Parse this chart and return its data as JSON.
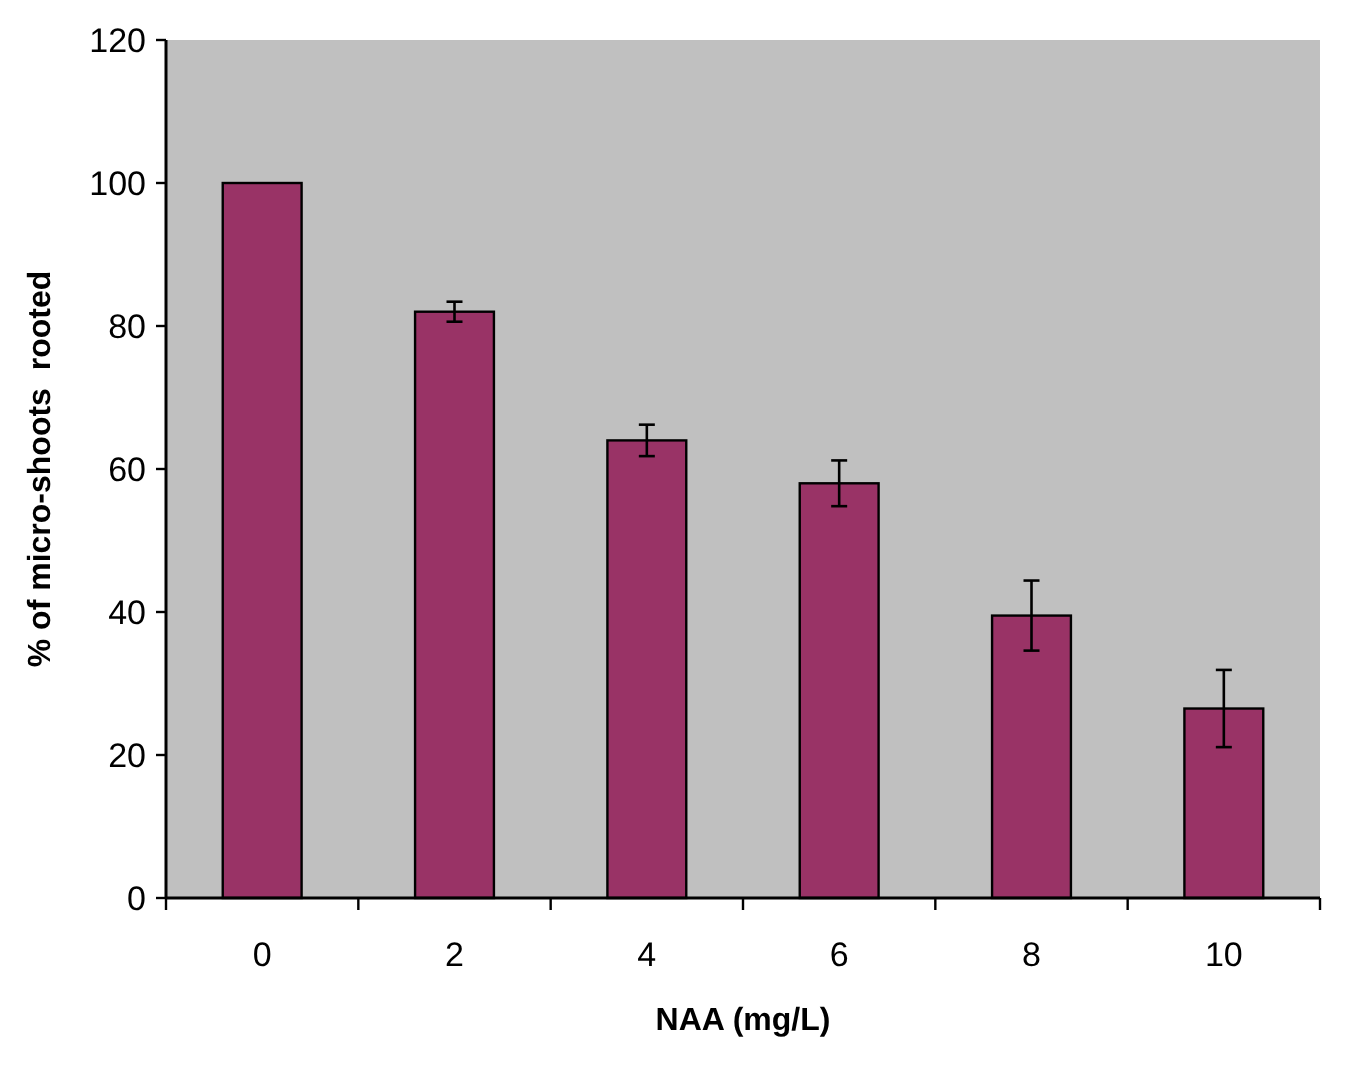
{
  "chart_data": {
    "type": "bar",
    "xlabel": "NAA (mg/L)",
    "ylabel": "% of micro-shoots  rooted",
    "categories": [
      "0",
      "2",
      "4",
      "6",
      "8",
      "10"
    ],
    "values": [
      100,
      82,
      64,
      58,
      39.5,
      26.5
    ],
    "errors": [
      null,
      1.4,
      2.2,
      3.2,
      4.9,
      5.4
    ],
    "color": "#993366",
    "ylim": [
      0,
      120
    ],
    "yticks": [
      0,
      20,
      40,
      60,
      80,
      100,
      120
    ],
    "grid": false
  }
}
